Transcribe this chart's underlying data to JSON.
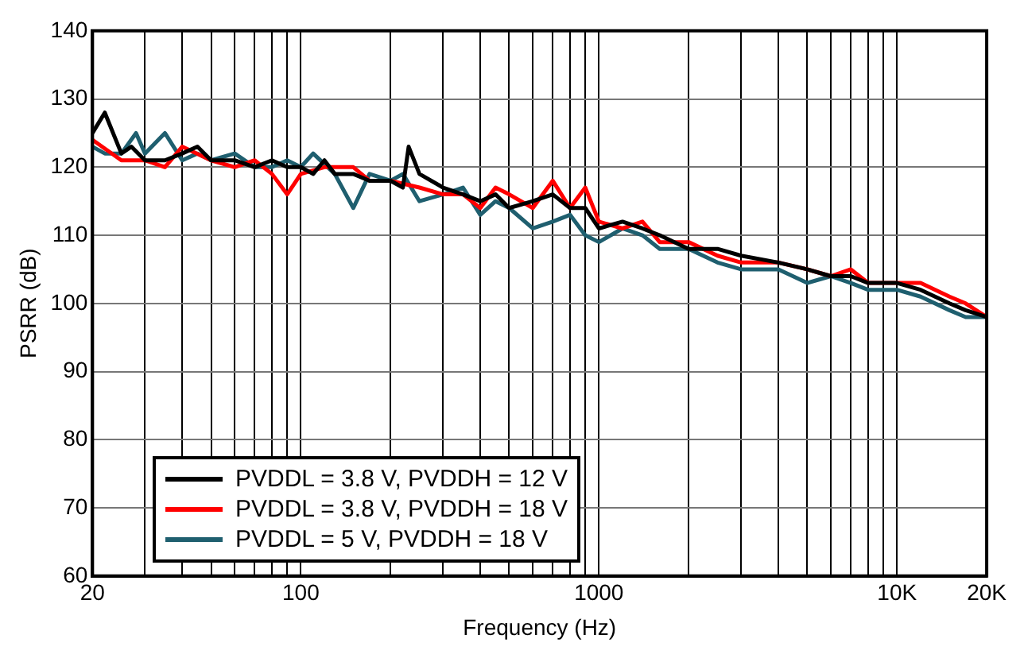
{
  "chart_data": {
    "type": "line",
    "xlabel": "Frequency (Hz)",
    "ylabel": "PSRR (dB)",
    "log": "x",
    "xlim": [
      20,
      20000
    ],
    "ylim": [
      60,
      140
    ],
    "xticks": [
      20,
      {
        "value": 30,
        "label": null
      },
      {
        "value": 40,
        "label": null
      },
      {
        "value": 50,
        "label": null
      },
      {
        "value": 60,
        "label": null
      },
      {
        "value": 70,
        "label": null
      },
      {
        "value": 80,
        "label": null
      },
      {
        "value": 90,
        "label": null
      },
      100,
      {
        "value": 200,
        "label": null
      },
      {
        "value": 300,
        "label": null
      },
      {
        "value": 400,
        "label": null
      },
      {
        "value": 500,
        "label": null
      },
      {
        "value": 600,
        "label": null
      },
      {
        "value": 700,
        "label": null
      },
      {
        "value": 800,
        "label": null
      },
      {
        "value": 900,
        "label": null
      },
      1000,
      {
        "value": 2000,
        "label": null
      },
      {
        "value": 3000,
        "label": null
      },
      {
        "value": 4000,
        "label": null
      },
      {
        "value": 5000,
        "label": null
      },
      {
        "value": 6000,
        "label": null
      },
      {
        "value": 7000,
        "label": null
      },
      {
        "value": 8000,
        "label": null
      },
      {
        "value": 9000,
        "label": null
      },
      {
        "value": 10000,
        "label": "10K"
      },
      {
        "value": 20000,
        "label": "20K"
      }
    ],
    "yticks": [
      60,
      70,
      80,
      90,
      100,
      110,
      120,
      130,
      140
    ],
    "grid": true,
    "legend": "bottom left",
    "marker": "none",
    "line_style": "solid",
    "series": [
      {
        "name": "PVDDL = 3.8 V, PVDDH = 12 V",
        "color": "#000000",
        "x": [
          20,
          22,
          25,
          27,
          30,
          35,
          40,
          45,
          50,
          60,
          70,
          80,
          90,
          100,
          110,
          120,
          130,
          150,
          170,
          200,
          220,
          230,
          250,
          300,
          350,
          400,
          450,
          500,
          600,
          700,
          800,
          900,
          1000,
          1200,
          1400,
          1600,
          2000,
          2500,
          3000,
          4000,
          5000,
          6000,
          7000,
          8000,
          10000,
          12000,
          15000,
          17000,
          20000
        ],
        "values": [
          125,
          128,
          122,
          123,
          121,
          121,
          122,
          123,
          121,
          121,
          120,
          121,
          120,
          120,
          119,
          121,
          119,
          119,
          118,
          118,
          117,
          123,
          119,
          117,
          116,
          115,
          116,
          114,
          115,
          116,
          114,
          114,
          111,
          112,
          111,
          110,
          108,
          108,
          107,
          106,
          105,
          104,
          104,
          103,
          103,
          102,
          100,
          99,
          98
        ]
      },
      {
        "name": "PVDDL = 3.8 V, PVDDH = 18 V",
        "color": "#ff0000",
        "x": [
          20,
          25,
          30,
          35,
          40,
          50,
          60,
          70,
          80,
          90,
          100,
          120,
          150,
          170,
          200,
          250,
          300,
          350,
          400,
          450,
          500,
          600,
          700,
          800,
          900,
          1000,
          1200,
          1400,
          1600,
          2000,
          2500,
          3000,
          4000,
          5000,
          6000,
          7000,
          8000,
          10000,
          12000,
          15000,
          17000,
          20000
        ],
        "values": [
          124,
          121,
          121,
          120,
          123,
          121,
          120,
          121,
          119,
          116,
          119,
          120,
          120,
          118,
          118,
          117,
          116,
          116,
          114,
          117,
          116,
          114,
          118,
          114,
          117,
          112,
          111,
          112,
          109,
          109,
          107,
          106,
          106,
          105,
          104,
          105,
          103,
          103,
          103,
          101,
          100,
          98
        ]
      },
      {
        "name": "PVDDL = 5 V, PVDDH = 18 V",
        "color": "#1f5f6f",
        "x": [
          20,
          22,
          25,
          28,
          30,
          35,
          40,
          45,
          50,
          60,
          70,
          80,
          90,
          100,
          110,
          130,
          150,
          170,
          200,
          220,
          250,
          300,
          350,
          400,
          450,
          500,
          600,
          700,
          800,
          900,
          1000,
          1200,
          1400,
          1600,
          2000,
          2500,
          3000,
          4000,
          5000,
          6000,
          7000,
          8000,
          10000,
          12000,
          15000,
          17000,
          20000
        ],
        "values": [
          123,
          122,
          122,
          125,
          122,
          125,
          121,
          122,
          121,
          122,
          120,
          120,
          121,
          120,
          122,
          119,
          114,
          119,
          118,
          119,
          115,
          116,
          117,
          113,
          115,
          114,
          111,
          112,
          113,
          110,
          109,
          111,
          110,
          108,
          108,
          106,
          105,
          105,
          103,
          104,
          103,
          102,
          102,
          101,
          99,
          98,
          98
        ]
      }
    ]
  }
}
